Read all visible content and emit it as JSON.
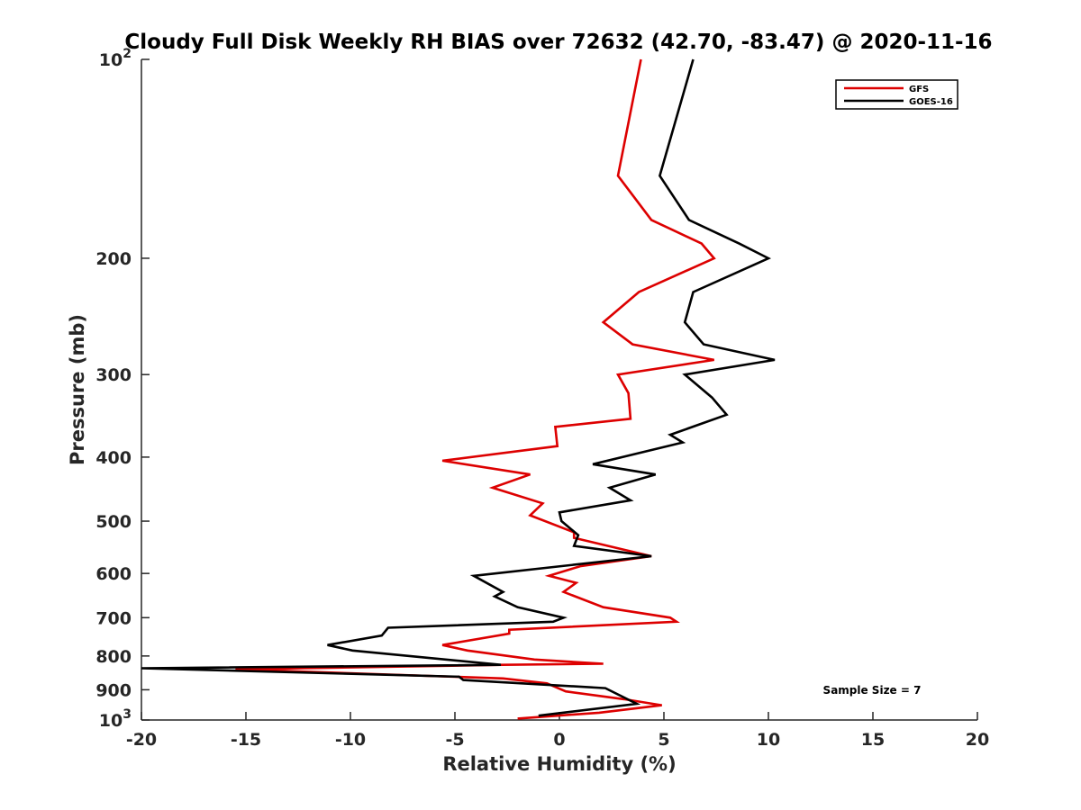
{
  "chart_data": {
    "type": "line",
    "title": "Cloudy Full Disk Weekly RH BIAS over 72632 (42.70, -83.47) @ 2020-11-16",
    "xlabel": "Relative Humidity (%)",
    "ylabel": "Pressure (mb)",
    "xlim": [
      -20,
      20
    ],
    "ylim": [
      100,
      1000
    ],
    "y_scale": "log",
    "y_reversed": true,
    "x_ticks": [
      "-20",
      "-15",
      "-10",
      "-5",
      "0",
      "5",
      "10",
      "15",
      "20"
    ],
    "y_ticks": [
      {
        "value": 100,
        "base": "10",
        "exp": "2"
      },
      {
        "value": 200,
        "label": "200"
      },
      {
        "value": 300,
        "label": "300"
      },
      {
        "value": 400,
        "label": "400"
      },
      {
        "value": 500,
        "label": "500"
      },
      {
        "value": 600,
        "label": "600"
      },
      {
        "value": 700,
        "label": "700"
      },
      {
        "value": 800,
        "label": "800"
      },
      {
        "value": 900,
        "label": "900"
      },
      {
        "value": 1000,
        "base": "10",
        "exp": "3"
      }
    ],
    "grid": false,
    "legend_position": "top-right",
    "annotation": "Sample Size = 7",
    "series": [
      {
        "name": "GFS",
        "color": "#dd0000",
        "points": [
          [
            3.9,
            100
          ],
          [
            2.8,
            150
          ],
          [
            4.4,
            175
          ],
          [
            6.8,
            190
          ],
          [
            7.4,
            200
          ],
          [
            3.8,
            225
          ],
          [
            2.1,
            250
          ],
          [
            3.5,
            270
          ],
          [
            7.4,
            285
          ],
          [
            2.8,
            300
          ],
          [
            3.3,
            320
          ],
          [
            3.4,
            350
          ],
          [
            -0.2,
            360
          ],
          [
            -0.1,
            385
          ],
          [
            -5.6,
            405
          ],
          [
            -1.4,
            425
          ],
          [
            -3.2,
            445
          ],
          [
            -0.8,
            470
          ],
          [
            -1.4,
            490
          ],
          [
            0.7,
            520
          ],
          [
            0.7,
            530
          ],
          [
            4.4,
            565
          ],
          [
            1.0,
            585
          ],
          [
            -0.5,
            605
          ],
          [
            0.8,
            620
          ],
          [
            0.2,
            640
          ],
          [
            2.1,
            675
          ],
          [
            5.3,
            700
          ],
          [
            5.6,
            710
          ],
          [
            -2.4,
            730
          ],
          [
            -2.4,
            740
          ],
          [
            -5.6,
            770
          ],
          [
            -4.4,
            785
          ],
          [
            -1.2,
            810
          ],
          [
            2.1,
            822
          ],
          [
            -2.7,
            825
          ],
          [
            -15.5,
            838
          ],
          [
            -2.7,
            865
          ],
          [
            -0.6,
            880
          ],
          [
            0.3,
            905
          ],
          [
            3.1,
            930
          ],
          [
            4.9,
            950
          ],
          [
            1.9,
            975
          ],
          [
            -2.0,
            995
          ]
        ]
      },
      {
        "name": "GOES-16",
        "color": "#000000",
        "points": [
          [
            6.4,
            100
          ],
          [
            4.8,
            150
          ],
          [
            6.2,
            175
          ],
          [
            8.6,
            190
          ],
          [
            10.0,
            200
          ],
          [
            6.4,
            225
          ],
          [
            6.0,
            250
          ],
          [
            6.9,
            270
          ],
          [
            10.3,
            285
          ],
          [
            6.0,
            300
          ],
          [
            7.3,
            325
          ],
          [
            8.0,
            345
          ],
          [
            5.3,
            370
          ],
          [
            5.9,
            380
          ],
          [
            1.6,
            410
          ],
          [
            4.6,
            425
          ],
          [
            2.4,
            445
          ],
          [
            3.4,
            465
          ],
          [
            0.0,
            485
          ],
          [
            0.1,
            500
          ],
          [
            0.9,
            525
          ],
          [
            0.7,
            545
          ],
          [
            4.4,
            565
          ],
          [
            -4.1,
            605
          ],
          [
            -2.7,
            640
          ],
          [
            -3.1,
            650
          ],
          [
            -2.0,
            675
          ],
          [
            0.2,
            700
          ],
          [
            -0.3,
            710
          ],
          [
            -8.2,
            725
          ],
          [
            -8.5,
            745
          ],
          [
            -11.1,
            770
          ],
          [
            -9.9,
            785
          ],
          [
            -2.8,
            825
          ],
          [
            -20.0,
            835
          ],
          [
            -4.8,
            860
          ],
          [
            -4.6,
            870
          ],
          [
            2.2,
            895
          ],
          [
            3.7,
            945
          ],
          [
            -1.0,
            985
          ]
        ]
      }
    ]
  }
}
